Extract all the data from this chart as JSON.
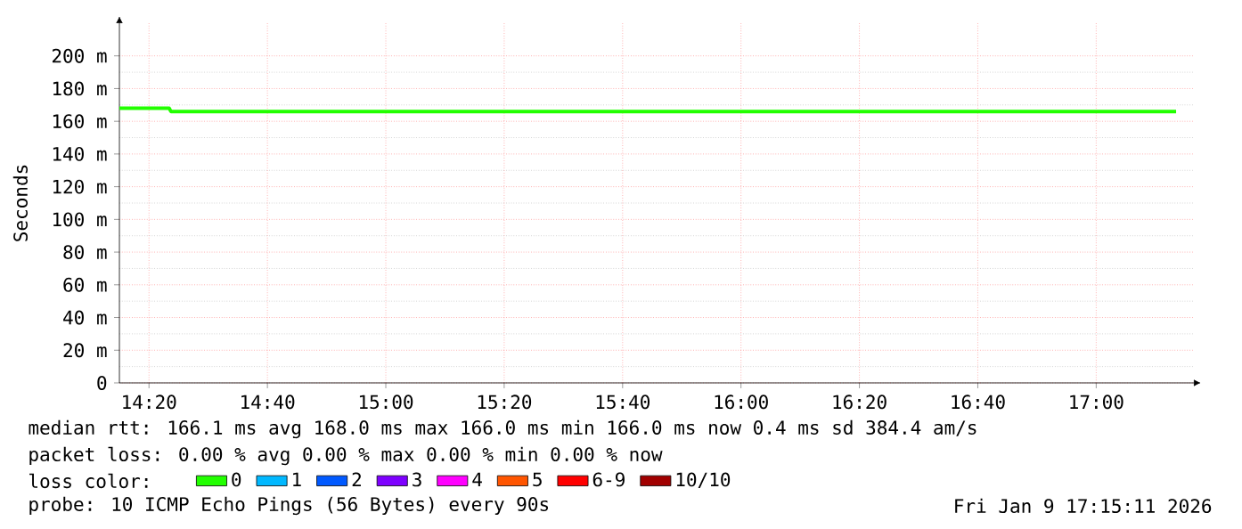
{
  "chart_data": {
    "type": "line",
    "ylabel": "Seconds",
    "legend_title": "loss color:",
    "legend": "bottom",
    "grid": true,
    "xlim": [
      14.25,
      17.275
    ],
    "ylim": [
      0,
      220
    ],
    "xticks": [
      {
        "value": 14.3333,
        "label": "14:20"
      },
      {
        "value": 14.6667,
        "label": "14:40"
      },
      {
        "value": 15,
        "label": "15:00"
      },
      {
        "value": 15.3333,
        "label": "15:20"
      },
      {
        "value": 15.6667,
        "label": "15:40"
      },
      {
        "value": 16,
        "label": "16:00"
      },
      {
        "value": 16.3333,
        "label": "16:20"
      },
      {
        "value": 16.6667,
        "label": "16:40"
      },
      {
        "value": 17,
        "label": "17:00"
      }
    ],
    "yticks": [
      0,
      {
        "value": 20,
        "label": "20 m"
      },
      {
        "value": 40,
        "label": "40 m"
      },
      {
        "value": 60,
        "label": "60 m"
      },
      {
        "value": 80,
        "label": "80 m"
      },
      {
        "value": 100,
        "label": "100 m"
      },
      {
        "value": 120,
        "label": "120 m"
      },
      {
        "value": 140,
        "label": "140 m"
      },
      {
        "value": 160,
        "label": "160 m"
      },
      {
        "value": 180,
        "label": "180 m"
      },
      {
        "value": 200,
        "label": "200 m"
      }
    ],
    "series": [
      {
        "name": "0",
        "color": "#22ff00",
        "x": [
          14.25,
          14.39,
          14.395,
          17.225
        ],
        "values": [
          168,
          168,
          166,
          166
        ]
      },
      {
        "name": "1",
        "color": "#00b8ff",
        "values": [
          null
        ]
      },
      {
        "name": "2",
        "color": "#0059ff",
        "values": [
          null
        ]
      },
      {
        "name": "3",
        "color": "#7e00ff",
        "values": [
          null
        ]
      },
      {
        "name": "4",
        "color": "#ff00ff",
        "values": [
          null
        ]
      },
      {
        "name": "5",
        "color": "#ff5500",
        "values": [
          null
        ]
      },
      {
        "name": "6-9",
        "color": "#ff0000",
        "values": [
          null
        ]
      },
      {
        "name": "10/10",
        "color": "#a10000",
        "values": [
          null
        ]
      }
    ],
    "annotations": [
      "median rtt:  166.1 ms avg  168.0 ms max  166.0 ms min  166.0 ms now  0.4 ms sd  384.4  am/s",
      "packet loss: 0.00 % avg  0.00 % max  0.00 % min  0.00 % now",
      "probe:  10 ICMP Echo Pings (56 Bytes) every 90s",
      "Fri Jan  9 17:15:11 2026"
    ]
  }
}
